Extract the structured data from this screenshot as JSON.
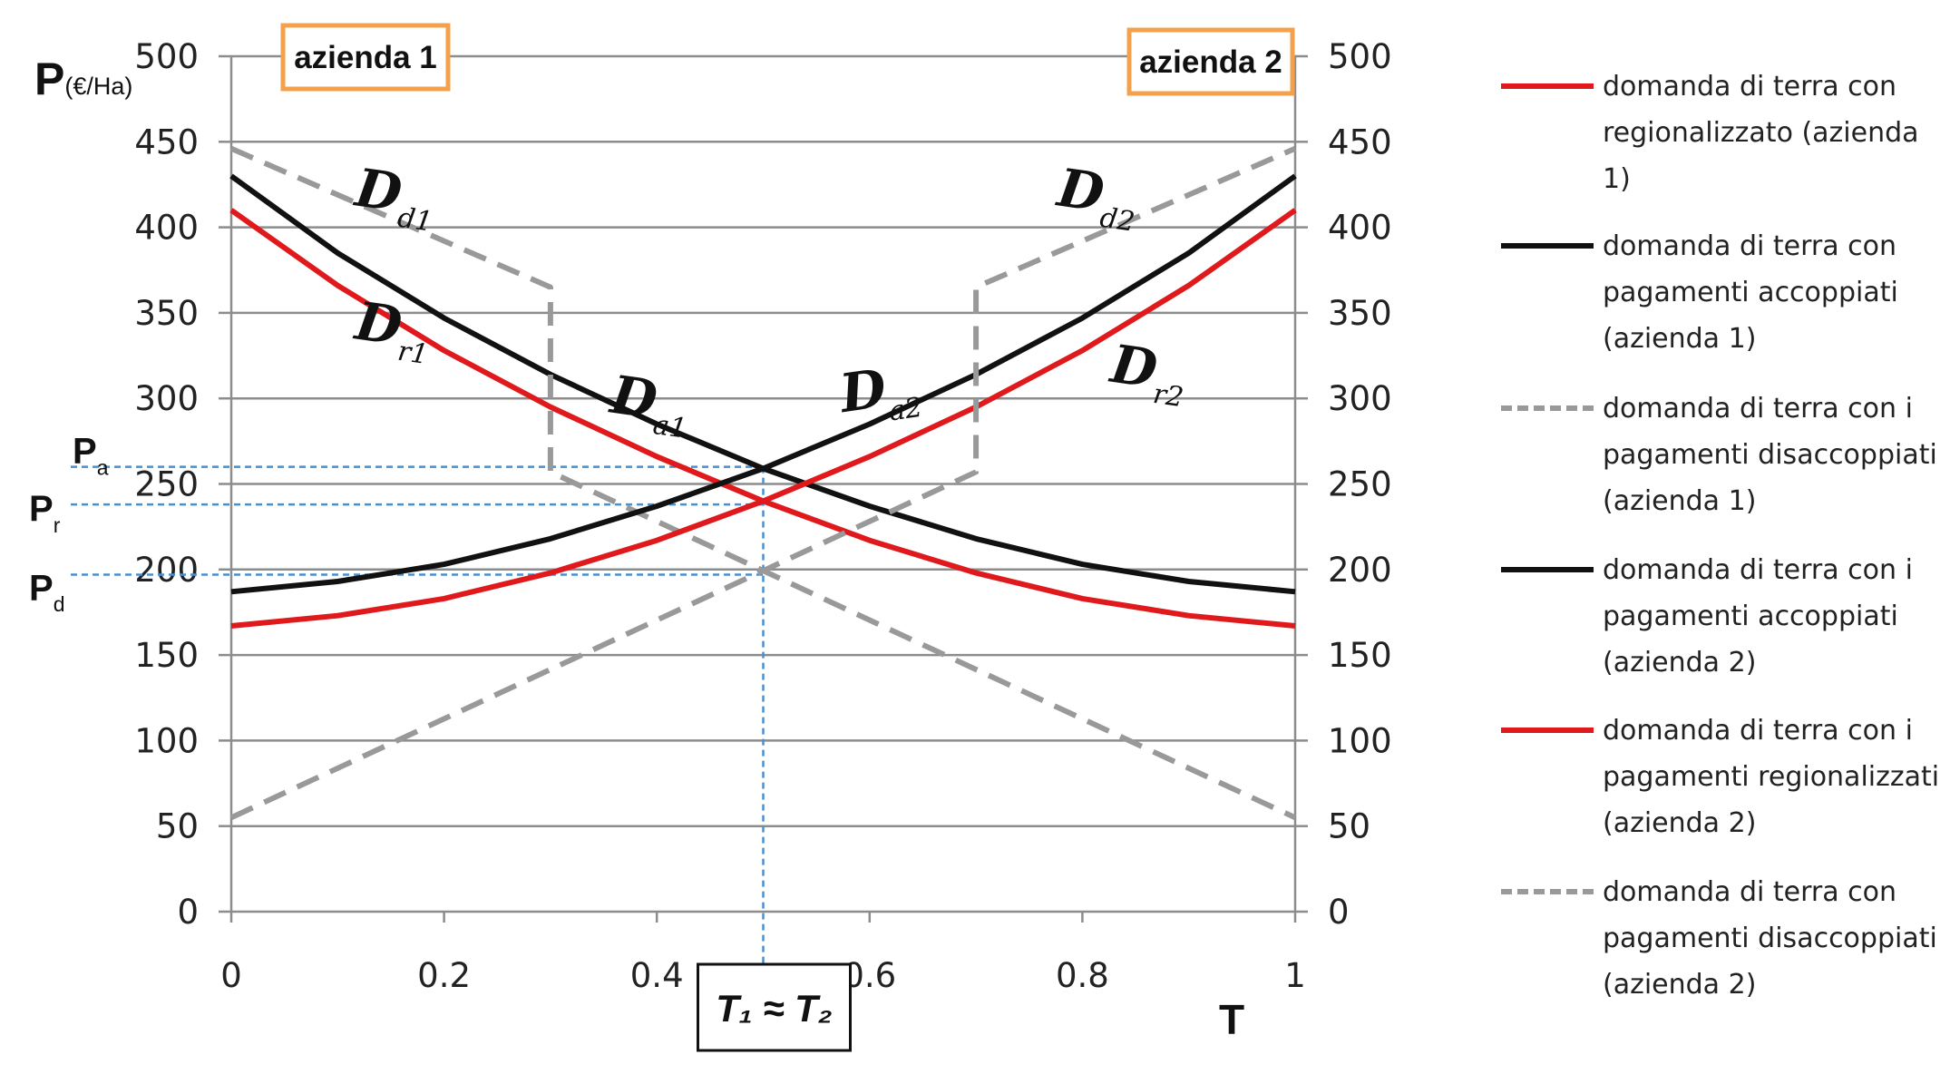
{
  "chart_data": {
    "type": "line",
    "ylabel_main": "P",
    "ylabel_unit": "(€/Ha)",
    "xlabel": "T",
    "x_ticks": [
      "0",
      "0.2",
      "0.4",
      "0.6",
      "0.8",
      "1"
    ],
    "y_ticks": [
      "0",
      "50",
      "100",
      "150",
      "200",
      "250",
      "300",
      "350",
      "400",
      "450",
      "500"
    ],
    "xlim": [
      0,
      1
    ],
    "ylim": [
      0,
      500
    ],
    "grid": "horizontal",
    "firm_labels": {
      "left": "azienda 1",
      "right": "azienda 2"
    },
    "price_markers": [
      {
        "label": "P",
        "sub": "a",
        "value": 260
      },
      {
        "label": "P",
        "sub": "r",
        "value": 238
      },
      {
        "label": "P",
        "sub": "d",
        "value": 197
      }
    ],
    "t_marker": {
      "x": 0.5,
      "label": "T₁ ≈ T₂"
    },
    "curve_labels": [
      {
        "main": "D",
        "sub": "d1"
      },
      {
        "main": "D",
        "sub": "r1"
      },
      {
        "main": "D",
        "sub": "a1"
      },
      {
        "main": "D",
        "sub": "a2"
      },
      {
        "main": "D",
        "sub": "d2"
      },
      {
        "main": "D",
        "sub": "r2"
      }
    ],
    "series": [
      {
        "name": "domanda di terra con regionalizzato (azienda 1)",
        "color": "#e0191c",
        "style": "solid",
        "x": [
          0,
          0.1,
          0.2,
          0.3,
          0.4,
          0.5,
          0.6,
          0.7,
          0.8,
          0.9,
          1
        ],
        "y": [
          410,
          366,
          328,
          295,
          266,
          240,
          217,
          198,
          183,
          173,
          167
        ]
      },
      {
        "name": "domanda di terra con pagamenti accoppiati (azienda 1)",
        "color": "#111111",
        "style": "solid",
        "x": [
          0,
          0.1,
          0.2,
          0.3,
          0.4,
          0.5,
          0.6,
          0.7,
          0.8,
          0.9,
          1
        ],
        "y": [
          430,
          385,
          347,
          314,
          285,
          259,
          237,
          218,
          203,
          193,
          187
        ]
      },
      {
        "name": "domanda di terra con i pagamenti disaccoppiati (azienda 1)",
        "color": "#999999",
        "style": "dashed",
        "x": [
          0,
          0.3,
          0.3,
          1
        ],
        "y": [
          446,
          365,
          257,
          55
        ]
      },
      {
        "name": "domanda di terra con i pagamenti accoppiati (azienda 2)",
        "color": "#111111",
        "style": "solid",
        "x": [
          0,
          0.1,
          0.2,
          0.3,
          0.4,
          0.5,
          0.6,
          0.7,
          0.8,
          0.9,
          1
        ],
        "y": [
          187,
          193,
          203,
          218,
          237,
          259,
          285,
          314,
          347,
          385,
          430
        ]
      },
      {
        "name": "domanda di terra con i pagamenti regionalizzati (azienda 2)",
        "color": "#e0191c",
        "style": "solid",
        "x": [
          0,
          0.1,
          0.2,
          0.3,
          0.4,
          0.5,
          0.6,
          0.7,
          0.8,
          0.9,
          1
        ],
        "y": [
          167,
          173,
          183,
          198,
          217,
          240,
          266,
          295,
          328,
          366,
          410
        ]
      },
      {
        "name": "domanda di terra con pagamenti disaccoppiati (azienda 2)",
        "color": "#999999",
        "style": "dashed",
        "x": [
          0,
          0.7,
          0.7,
          1
        ],
        "y": [
          55,
          257,
          365,
          446
        ]
      }
    ],
    "legend": {
      "position": "right",
      "items": [
        {
          "lines": [
            "domanda di terra con",
            "regionalizzato (azienda 1)"
          ],
          "color": "#e0191c",
          "style": "solid"
        },
        {
          "lines": [
            "domanda di terra con",
            "pagamenti accoppiati",
            "(azienda 1)"
          ],
          "color": "#111111",
          "style": "solid"
        },
        {
          "lines": [
            "domanda di terra con i",
            "pagamenti disaccoppiati",
            "(azienda 1)"
          ],
          "color": "#999999",
          "style": "dashed"
        },
        {
          "lines": [
            "domanda di terra con i",
            "pagamenti accoppiati",
            "(azienda 2)"
          ],
          "color": "#111111",
          "style": "solid"
        },
        {
          "lines": [
            "domanda di terra con i",
            "pagamenti regionalizzati",
            "(azienda 2)"
          ],
          "color": "#e0191c",
          "style": "solid"
        },
        {
          "lines": [
            "domanda di terra con",
            "pagamenti disaccoppiati",
            "(azienda 2)"
          ],
          "color": "#999999",
          "style": "dashed"
        }
      ]
    }
  }
}
